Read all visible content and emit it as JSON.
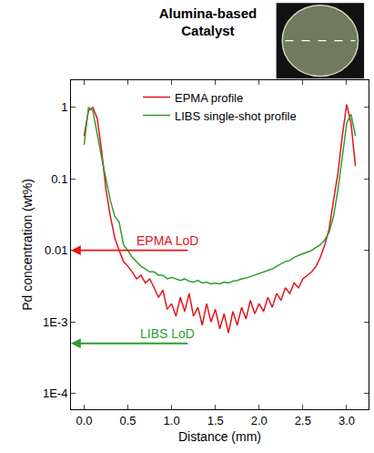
{
  "chart_data": {
    "type": "line",
    "title": "Alumina-based Catalyst",
    "x_label": "Distance (mm)",
    "y_label": "Pd concentration (wt%)",
    "log": "y",
    "grid": false,
    "legend": "top",
    "x": [
      0,
      0.05,
      0.1,
      0.15,
      0.2,
      0.25,
      0.3,
      0.35,
      0.4,
      0.45,
      0.5,
      0.55,
      0.6,
      0.65,
      0.7,
      0.75,
      0.8,
      0.85,
      0.9,
      0.95,
      1.0,
      1.05,
      1.1,
      1.15,
      1.2,
      1.25,
      1.3,
      1.35,
      1.4,
      1.45,
      1.5,
      1.55,
      1.6,
      1.65,
      1.7,
      1.75,
      1.8,
      1.85,
      1.9,
      1.95,
      2.0,
      2.05,
      2.1,
      2.15,
      2.2,
      2.25,
      2.3,
      2.35,
      2.4,
      2.45,
      2.5,
      2.55,
      2.6,
      2.65,
      2.7,
      2.75,
      2.8,
      2.85,
      2.9,
      2.95,
      3.0,
      3.05,
      3.1
    ],
    "series": [
      {
        "name": "EPMA profile",
        "color": "#e3141b",
        "line_style": "solid",
        "values": [
          0.4,
          0.9,
          1.0,
          0.7,
          0.25,
          0.07,
          0.03,
          0.015,
          0.01,
          0.007,
          0.006,
          0.005,
          0.004,
          0.0045,
          0.0035,
          0.004,
          0.003,
          0.0022,
          0.0028,
          0.0015,
          0.0018,
          0.0012,
          0.0022,
          0.0014,
          0.0025,
          0.0012,
          0.0016,
          0.0009,
          0.0018,
          0.001,
          0.0015,
          0.0008,
          0.0013,
          0.0007,
          0.0014,
          0.0009,
          0.0016,
          0.0011,
          0.002,
          0.0013,
          0.0018,
          0.0014,
          0.0022,
          0.0016,
          0.0025,
          0.002,
          0.003,
          0.0025,
          0.0035,
          0.003,
          0.004,
          0.0045,
          0.005,
          0.006,
          0.008,
          0.012,
          0.02,
          0.05,
          0.12,
          0.4,
          1.1,
          0.6,
          0.15
        ]
      },
      {
        "name": "LIBS single-shot profile",
        "color": "#2f9e2f",
        "line_style": "solid",
        "values": [
          0.3,
          1.0,
          0.9,
          0.4,
          0.2,
          0.1,
          0.05,
          0.03,
          0.025,
          0.012,
          0.01,
          0.008,
          0.007,
          0.006,
          0.0055,
          0.005,
          0.005,
          0.0045,
          0.0045,
          0.004,
          0.0042,
          0.004,
          0.0038,
          0.004,
          0.0037,
          0.0036,
          0.0038,
          0.0035,
          0.0036,
          0.0034,
          0.0035,
          0.0034,
          0.0036,
          0.0035,
          0.0037,
          0.0038,
          0.004,
          0.0041,
          0.0043,
          0.0045,
          0.0047,
          0.005,
          0.0052,
          0.0055,
          0.006,
          0.0065,
          0.007,
          0.0072,
          0.008,
          0.0085,
          0.009,
          0.0095,
          0.01,
          0.011,
          0.012,
          0.014,
          0.018,
          0.03,
          0.07,
          0.2,
          0.6,
          0.8,
          0.4
        ]
      }
    ],
    "annotations": [
      {
        "text": "EPMA LoD",
        "value": 0.01,
        "color": "#e3141b"
      },
      {
        "text": "LIBS LoD",
        "value": 0.0005,
        "color": "#2f9e2f"
      }
    ],
    "xlim": [
      -0.15,
      3.25
    ],
    "xticks": [
      {
        "value": 0,
        "label": "0.0"
      },
      0.5,
      {
        "value": 1,
        "label": "1.0"
      },
      1.5,
      {
        "value": 2,
        "label": "2.0"
      },
      2.5,
      {
        "value": 3,
        "label": "3.0"
      }
    ],
    "ylim": [
      6e-05,
      2.4
    ],
    "yticks": [
      {
        "value": 0.0001,
        "label": "1E-4"
      },
      {
        "value": 0.001,
        "label": "1E-3"
      },
      0.01,
      0.1,
      1
    ]
  }
}
